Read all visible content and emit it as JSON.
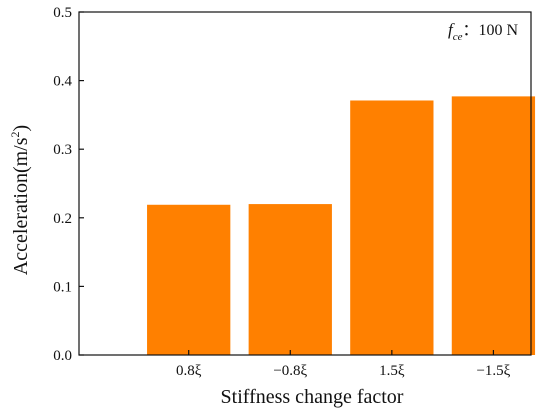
{
  "chart_data": {
    "type": "bar",
    "categories": [
      "0.8ξ",
      "−0.8ξ",
      "1.5ξ",
      "−1.5ξ"
    ],
    "values": [
      0.219,
      0.22,
      0.371,
      0.377
    ],
    "xlabel": "Stiffness change factor",
    "ylabel": {
      "main": "Acceleration(m/s",
      "sup": "2",
      "tail": ")"
    },
    "ylim": [
      0,
      0.5
    ],
    "yticks": [
      "0.0",
      "0.1",
      "0.2",
      "0.3",
      "0.4",
      "0.5"
    ],
    "ytick_values": [
      0,
      0.1,
      0.2,
      0.3,
      0.4,
      0.5
    ],
    "annotation": {
      "symbol": "f",
      "subscript": "ce",
      "separator": "：",
      "value": "100 N"
    },
    "bar_color": "#ff8000",
    "grid": false,
    "legend": "none"
  }
}
